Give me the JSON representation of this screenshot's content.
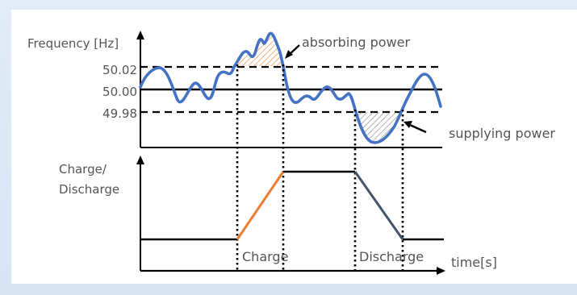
{
  "labels": {
    "frequency_axis": "Frequency [Hz]",
    "level_high": "50.02",
    "level_nominal": "50.00",
    "level_low": "49.98",
    "absorbing_power": "absorbing power",
    "supplying_power": "supplying power",
    "charge_axis_line1": "Charge/",
    "charge_axis_line2": "Discharge",
    "charge": "Charge",
    "discharge": "Discharge",
    "time_axis": "time[s]"
  },
  "colors": {
    "frequency_curve": "#4472c4",
    "charge_segment": "#ed7d31",
    "discharge_segment": "#44546a",
    "absorb_hatch": "#ed7d31",
    "supply_hatch": "#7f7f7f",
    "axis": "#000000"
  }
}
